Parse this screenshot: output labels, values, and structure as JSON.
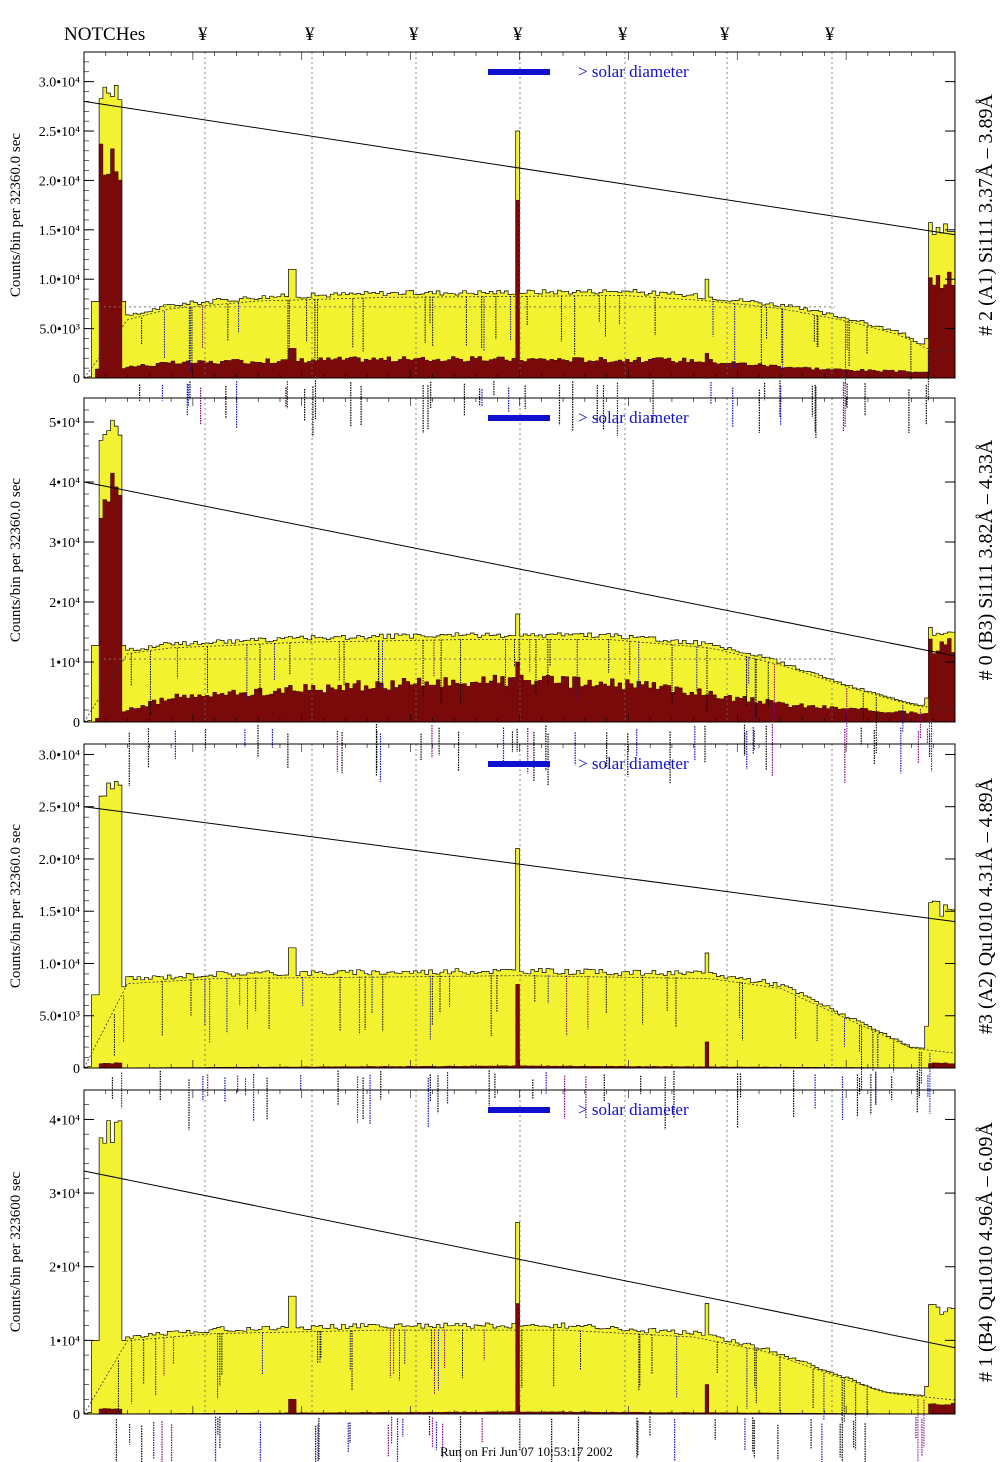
{
  "header": {
    "notch_label": "NOTCHes",
    "notch_symbol": "¥"
  },
  "footer": {
    "text": "Run on Fri Jun 07 10:53:17 2002"
  },
  "colors": {
    "spectrum": "#f2f230",
    "background": "#7a0a0a",
    "legend_bar": "#1010d0",
    "line_black": "#000000",
    "line_blue": "#1010c0",
    "line_purple": "#800080"
  },
  "chart_data": [
    {
      "type": "area",
      "side_label": "# 2 (A1) Si111  3.37Å – 3.89Å",
      "ylabel": "Counts/bin per  32360.0 sec",
      "ylim": [
        0,
        33000
      ],
      "yticks": [
        {
          "v": 0,
          "t": "0"
        },
        {
          "v": 5000,
          "t": "5.0•10³"
        },
        {
          "v": 10000,
          "t": "1.0•10⁴"
        },
        {
          "v": 15000,
          "t": "1.5•10⁴"
        },
        {
          "v": 20000,
          "t": "2.0•10⁴"
        },
        {
          "v": 25000,
          "t": "2.5•10⁴"
        },
        {
          "v": 30000,
          "t": "3.0•10⁴"
        }
      ],
      "legend": "> solar diameter",
      "spectrum": [
        [
          0.0,
          0
        ],
        [
          0.05,
          6200
        ],
        [
          0.1,
          7400
        ],
        [
          0.2,
          8200
        ],
        [
          0.35,
          8600
        ],
        [
          0.5,
          8700
        ],
        [
          0.62,
          8800
        ],
        [
          0.72,
          8200
        ],
        [
          0.8,
          7400
        ],
        [
          0.88,
          6000
        ],
        [
          0.94,
          4500
        ],
        [
          0.97,
          3000
        ],
        [
          1.0,
          2800
        ]
      ],
      "background": [
        [
          0.0,
          800
        ],
        [
          0.1,
          1500
        ],
        [
          0.3,
          1900
        ],
        [
          0.5,
          1900
        ],
        [
          0.7,
          1800
        ],
        [
          0.85,
          900
        ],
        [
          1.0,
          500
        ]
      ],
      "dotted_level": 7200,
      "edge_peaks": [
        {
          "pos": 0.03,
          "height": 31000,
          "bg": 24000
        },
        {
          "pos": 0.985,
          "height": 16000,
          "bg": 11000
        }
      ],
      "center_peak": {
        "height": 25000,
        "bg": 18000
      },
      "notch_peaks": [
        {
          "pos": 0.24,
          "height": 11000,
          "bg": 3000
        },
        {
          "pos": 0.715,
          "height": 10000,
          "bg": 2500
        }
      ],
      "trend_line": [
        28000,
        14500
      ]
    },
    {
      "type": "area",
      "side_label": "# 0 (B3) Si111  3.82Å – 4.33Å",
      "ylabel": "Counts/bin per  32360.0 sec",
      "ylim": [
        0,
        54000
      ],
      "yticks": [
        {
          "v": 0,
          "t": "0"
        },
        {
          "v": 10000,
          "t": "1•10⁴"
        },
        {
          "v": 20000,
          "t": "2•10⁴"
        },
        {
          "v": 30000,
          "t": "3•10⁴"
        },
        {
          "v": 40000,
          "t": "4•10⁴"
        },
        {
          "v": 50000,
          "t": "5•10⁴"
        }
      ],
      "legend": "> solar diameter",
      "spectrum": [
        [
          0.0,
          0
        ],
        [
          0.05,
          12000
        ],
        [
          0.1,
          13000
        ],
        [
          0.25,
          14000
        ],
        [
          0.45,
          14500
        ],
        [
          0.6,
          14500
        ],
        [
          0.72,
          13000
        ],
        [
          0.8,
          10000
        ],
        [
          0.88,
          6000
        ],
        [
          0.95,
          3000
        ],
        [
          1.0,
          2000
        ]
      ],
      "background": [
        [
          0.0,
          0
        ],
        [
          0.1,
          4000
        ],
        [
          0.3,
          6000
        ],
        [
          0.5,
          7000
        ],
        [
          0.65,
          6000
        ],
        [
          0.8,
          3000
        ],
        [
          1.0,
          1000
        ]
      ],
      "dotted_level": 10500,
      "edge_peaks": [
        {
          "pos": 0.03,
          "height": 51000,
          "bg": 42000
        },
        {
          "pos": 0.985,
          "height": 16000,
          "bg": 14000
        }
      ],
      "center_peak": {
        "height": 18000,
        "bg": 10000
      },
      "notch_peaks": [],
      "trend_line": [
        40000,
        11000
      ]
    },
    {
      "type": "area",
      "side_label": "#3 (A2) Qu1010  4.31Å – 4.89Å",
      "ylabel": "Counts/bin per  32360.0 sec",
      "ylim": [
        0,
        31000
      ],
      "yticks": [
        {
          "v": 0,
          "t": "0"
        },
        {
          "v": 5000,
          "t": "5.0•10³"
        },
        {
          "v": 10000,
          "t": "1.0•10⁴"
        },
        {
          "v": 15000,
          "t": "1.5•10⁴"
        },
        {
          "v": 20000,
          "t": "2.0•10⁴"
        },
        {
          "v": 25000,
          "t": "2.5•10⁴"
        },
        {
          "v": 30000,
          "t": "3.0•10⁴"
        }
      ],
      "legend": "> solar diameter",
      "spectrum": [
        [
          0.0,
          0
        ],
        [
          0.05,
          8500
        ],
        [
          0.15,
          9000
        ],
        [
          0.5,
          9300
        ],
        [
          0.72,
          9000
        ],
        [
          0.8,
          8000
        ],
        [
          0.85,
          6000
        ],
        [
          0.9,
          4000
        ],
        [
          0.95,
          2000
        ],
        [
          1.0,
          1500
        ]
      ],
      "background": [
        [
          0.0,
          0
        ],
        [
          0.5,
          200
        ],
        [
          1.0,
          0
        ]
      ],
      "dotted_level": null,
      "edge_peaks": [
        {
          "pos": 0.03,
          "height": 28000,
          "bg": 500
        },
        {
          "pos": 0.985,
          "height": 16000,
          "bg": 500
        }
      ],
      "center_peak": {
        "height": 21000,
        "bg": 8000
      },
      "notch_peaks": [
        {
          "pos": 0.24,
          "height": 11500,
          "bg": 0
        },
        {
          "pos": 0.715,
          "height": 11000,
          "bg": 2500
        }
      ],
      "trend_line": [
        25000,
        14000
      ]
    },
    {
      "type": "area",
      "side_label": "# 1 (B4) Qu1010 4.96Å – 6.09Å",
      "ylabel": "Counts/bin per  323600 sec",
      "ylim": [
        0,
        44000
      ],
      "yticks": [
        {
          "v": 0,
          "t": "0"
        },
        {
          "v": 10000,
          "t": "1•10⁴"
        },
        {
          "v": 20000,
          "t": "2•10⁴"
        },
        {
          "v": 30000,
          "t": "3•10⁴"
        },
        {
          "v": 40000,
          "t": "4•10⁴"
        }
      ],
      "legend": "> solar diameter",
      "spectrum": [
        [
          0.0,
          0
        ],
        [
          0.05,
          10500
        ],
        [
          0.15,
          11500
        ],
        [
          0.35,
          12000
        ],
        [
          0.55,
          12000
        ],
        [
          0.7,
          11000
        ],
        [
          0.78,
          9000
        ],
        [
          0.85,
          6000
        ],
        [
          0.92,
          3000
        ],
        [
          1.0,
          2000
        ]
      ],
      "background": [
        [
          0.0,
          0
        ],
        [
          0.5,
          300
        ],
        [
          1.0,
          0
        ]
      ],
      "dotted_level": null,
      "edge_peaks": [
        {
          "pos": 0.03,
          "height": 40000,
          "bg": 800
        },
        {
          "pos": 0.985,
          "height": 15000,
          "bg": 1500
        }
      ],
      "center_peak": {
        "height": 26000,
        "bg": 15000
      },
      "notch_peaks": [
        {
          "pos": 0.24,
          "height": 16000,
          "bg": 2000
        },
        {
          "pos": 0.715,
          "height": 15000,
          "bg": 4000
        }
      ],
      "trend_line": [
        33000,
        9000
      ]
    }
  ]
}
